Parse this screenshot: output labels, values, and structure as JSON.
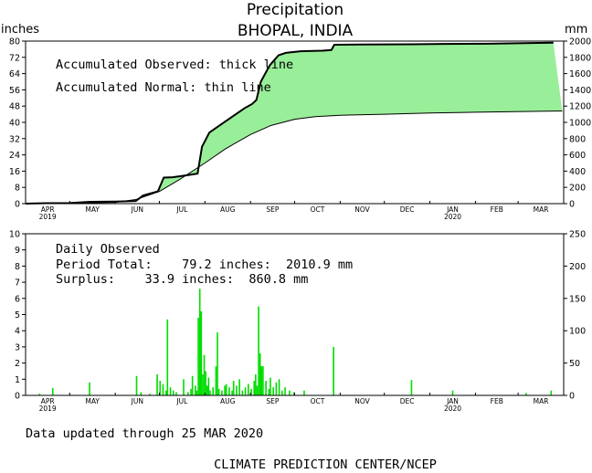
{
  "header": {
    "title": "Precipitation",
    "subtitle": "BHOPAL, INDIA",
    "unit_left": "inches",
    "unit_right": "mm"
  },
  "months": [
    "APR",
    "MAY",
    "JUN",
    "JUL",
    "AUG",
    "SEP",
    "OCT",
    "NOV",
    "DEC",
    "JAN",
    "FEB",
    "MAR"
  ],
  "year_labels": [
    {
      "month": "APR",
      "year": "2019"
    },
    {
      "month": "JAN",
      "year": "2020"
    }
  ],
  "top_panel": {
    "legend_observed": "Accumulated Observed: thick line",
    "legend_normal": "Accumulated Normal: thin line",
    "yticks_in": [
      0,
      8,
      16,
      24,
      32,
      40,
      48,
      56,
      64,
      72,
      80
    ],
    "yticks_mm": [
      0,
      200,
      400,
      600,
      800,
      1000,
      1200,
      1400,
      1600,
      1800,
      2000
    ]
  },
  "bottom_panel": {
    "heading": "Daily Observed",
    "period_total": "Period Total:    79.2 inches:  2010.9 mm",
    "surplus": "Surplus:    33.9 inches:  860.8 mm",
    "yticks_in": [
      0,
      1,
      2,
      3,
      4,
      5,
      6,
      7,
      8,
      9,
      10
    ],
    "yticks_mm": [
      0,
      50,
      100,
      150,
      200,
      250
    ]
  },
  "footer": {
    "updated": "Data updated through 25 MAR 2020",
    "credit": "CLIMATE PREDICTION CENTER/NCEP"
  },
  "colors": {
    "observed_fill": "#99ee99",
    "bar": "#00dd00",
    "line": "#000000"
  },
  "chart_data": [
    {
      "type": "area",
      "title": "Precipitation",
      "subtitle": "BHOPAL, INDIA",
      "ylabel": "inches",
      "ylabel_right": "mm",
      "ylim": [
        0,
        80
      ],
      "ylim_right": [
        0,
        2000
      ],
      "x_unit": "date",
      "x_range": [
        "2019-04-01",
        "2020-03-31"
      ],
      "series": [
        {
          "name": "Accumulated Observed",
          "style": "thick",
          "points": [
            [
              "2019-04-01",
              0
            ],
            [
              "2019-04-15",
              0.2
            ],
            [
              "2019-05-01",
              0.3
            ],
            [
              "2019-05-15",
              0.9
            ],
            [
              "2019-06-01",
              1.0
            ],
            [
              "2019-06-15",
              1.3
            ],
            [
              "2019-06-20",
              4.0
            ],
            [
              "2019-06-30",
              6.0
            ],
            [
              "2019-07-04",
              12.8
            ],
            [
              "2019-07-10",
              13.0
            ],
            [
              "2019-07-20",
              14.0
            ],
            [
              "2019-07-27",
              14.8
            ],
            [
              "2019-07-30",
              28.0
            ],
            [
              "2019-08-04",
              35.0
            ],
            [
              "2019-08-12",
              39.0
            ],
            [
              "2019-08-20",
              43.0
            ],
            [
              "2019-08-28",
              47.0
            ],
            [
              "2019-09-02",
              49.0
            ],
            [
              "2019-09-05",
              51.0
            ],
            [
              "2019-09-08",
              60.0
            ],
            [
              "2019-09-14",
              68.0
            ],
            [
              "2019-09-20",
              73.0
            ],
            [
              "2019-09-25",
              74.2
            ],
            [
              "2019-10-05",
              75.0
            ],
            [
              "2019-10-20",
              75.3
            ],
            [
              "2019-10-26",
              75.6
            ],
            [
              "2019-10-28",
              78.2
            ],
            [
              "2019-11-15",
              78.3
            ],
            [
              "2019-12-20",
              78.4
            ],
            [
              "2020-01-10",
              78.6
            ],
            [
              "2020-02-10",
              78.7
            ],
            [
              "2020-03-25",
              79.2
            ]
          ]
        },
        {
          "name": "Accumulated Normal",
          "style": "thin",
          "points": [
            [
              "2019-04-01",
              0
            ],
            [
              "2019-05-01",
              0.2
            ],
            [
              "2019-06-01",
              0.6
            ],
            [
              "2019-06-15",
              2.0
            ],
            [
              "2019-07-01",
              6.0
            ],
            [
              "2019-07-15",
              12.0
            ],
            [
              "2019-08-01",
              20.0
            ],
            [
              "2019-08-15",
              27.0
            ],
            [
              "2019-09-01",
              34.0
            ],
            [
              "2019-09-15",
              38.5
            ],
            [
              "2019-10-01",
              41.5
            ],
            [
              "2019-10-15",
              42.8
            ],
            [
              "2019-11-01",
              43.5
            ],
            [
              "2019-12-01",
              44.0
            ],
            [
              "2020-01-01",
              44.6
            ],
            [
              "2020-02-01",
              45.0
            ],
            [
              "2020-03-31",
              45.6
            ]
          ]
        }
      ]
    },
    {
      "type": "bar",
      "title": "Daily Observed",
      "ylabel": "inches",
      "ylabel_right": "mm",
      "ylim": [
        0,
        10
      ],
      "ylim_right": [
        0,
        250
      ],
      "x_unit": "date",
      "x_range": [
        "2019-04-01",
        "2020-03-31"
      ],
      "values": [
        [
          "2019-04-10",
          0.1
        ],
        [
          "2019-04-19",
          0.45
        ],
        [
          "2019-05-14",
          0.8
        ],
        [
          "2019-06-15",
          1.2
        ],
        [
          "2019-06-18",
          0.2
        ],
        [
          "2019-06-24",
          0.1
        ],
        [
          "2019-06-29",
          1.3
        ],
        [
          "2019-07-01",
          0.9
        ],
        [
          "2019-07-03",
          0.7
        ],
        [
          "2019-07-05",
          0.3
        ],
        [
          "2019-07-06",
          4.7
        ],
        [
          "2019-07-08",
          0.5
        ],
        [
          "2019-07-10",
          0.3
        ],
        [
          "2019-07-12",
          0.2
        ],
        [
          "2019-07-17",
          1.0
        ],
        [
          "2019-07-20",
          0.2
        ],
        [
          "2019-07-22",
          0.4
        ],
        [
          "2019-07-23",
          1.2
        ],
        [
          "2019-07-25",
          0.6
        ],
        [
          "2019-07-26",
          0.3
        ],
        [
          "2019-07-27",
          4.8
        ],
        [
          "2019-07-28",
          6.6
        ],
        [
          "2019-07-29",
          5.2
        ],
        [
          "2019-07-30",
          1.3
        ],
        [
          "2019-07-31",
          2.5
        ],
        [
          "2019-08-01",
          1.5
        ],
        [
          "2019-08-02",
          0.6
        ],
        [
          "2019-08-03",
          1.1
        ],
        [
          "2019-08-04",
          0.3
        ],
        [
          "2019-08-06",
          0.5
        ],
        [
          "2019-08-08",
          1.8
        ],
        [
          "2019-08-09",
          3.9
        ],
        [
          "2019-08-10",
          0.4
        ],
        [
          "2019-08-12",
          0.3
        ],
        [
          "2019-08-14",
          0.6
        ],
        [
          "2019-08-15",
          0.7
        ],
        [
          "2019-08-17",
          0.5
        ],
        [
          "2019-08-19",
          0.3
        ],
        [
          "2019-08-20",
          0.9
        ],
        [
          "2019-08-22",
          0.6
        ],
        [
          "2019-08-24",
          1.0
        ],
        [
          "2019-08-26",
          0.3
        ],
        [
          "2019-08-28",
          0.5
        ],
        [
          "2019-08-30",
          0.7
        ],
        [
          "2019-09-01",
          0.4
        ],
        [
          "2019-09-03",
          0.9
        ],
        [
          "2019-09-04",
          1.3
        ],
        [
          "2019-09-05",
          0.6
        ],
        [
          "2019-09-06",
          5.5
        ],
        [
          "2019-09-07",
          2.6
        ],
        [
          "2019-09-08",
          1.8
        ],
        [
          "2019-09-09",
          1.8
        ],
        [
          "2019-09-11",
          0.9
        ],
        [
          "2019-09-13",
          0.4
        ],
        [
          "2019-09-14",
          1.1
        ],
        [
          "2019-09-16",
          0.5
        ],
        [
          "2019-09-18",
          0.8
        ],
        [
          "2019-09-20",
          1.0
        ],
        [
          "2019-09-22",
          0.3
        ],
        [
          "2019-09-24",
          0.5
        ],
        [
          "2019-09-27",
          0.3
        ],
        [
          "2019-09-30",
          0.2
        ],
        [
          "2019-10-07",
          0.3
        ],
        [
          "2019-10-27",
          3.0
        ],
        [
          "2019-12-19",
          0.95
        ],
        [
          "2020-01-16",
          0.3
        ],
        [
          "2020-03-06",
          0.15
        ],
        [
          "2020-03-23",
          0.3
        ]
      ]
    }
  ]
}
